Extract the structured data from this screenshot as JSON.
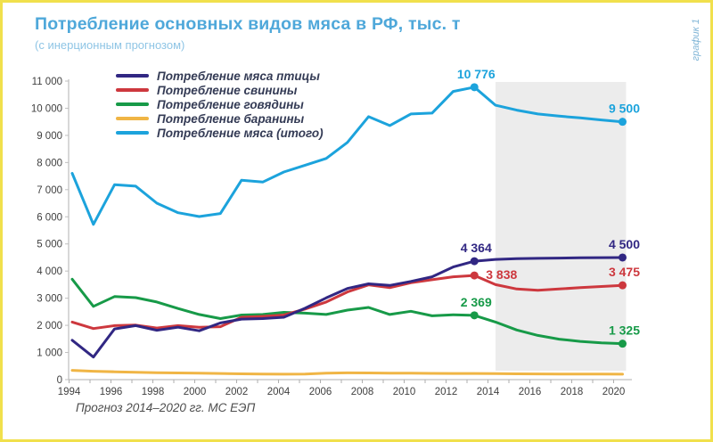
{
  "page": {
    "title": "Потребление основных видов мяса в РФ, тыс. т",
    "subtitle": "(с инерционным прогнозом)",
    "side_label": "график 1",
    "caption": "Прогноз 2014–2020 гг. МС ЕЭП",
    "border_color": "#F1E04C",
    "title_color": "#4FA8DA"
  },
  "chart_data": {
    "type": "line",
    "title": "Потребление основных видов мяса в РФ, тыс. т",
    "subtitle": "(с инерционным прогнозом)",
    "xlabel": "",
    "ylabel": "",
    "grid": false,
    "legend_position": "top-left-inside",
    "x": [
      1994,
      1995,
      1996,
      1997,
      1998,
      1999,
      2000,
      2001,
      2002,
      2003,
      2004,
      2005,
      2006,
      2007,
      2008,
      2009,
      2010,
      2011,
      2012,
      2013,
      2014,
      2015,
      2016,
      2017,
      2018,
      2019,
      2020
    ],
    "x_tick_labels": [
      "1994",
      "1996",
      "1998",
      "2000",
      "2002",
      "2004",
      "2006",
      "2008",
      "2010",
      "2012",
      "2014",
      "2016",
      "2018",
      "2020"
    ],
    "y_ticks": [
      0,
      1000,
      2000,
      3000,
      4000,
      5000,
      6000,
      7000,
      8000,
      9000,
      10000,
      11000
    ],
    "y_tick_labels": [
      "0",
      "1 000",
      "2 000",
      "3 000",
      "4 000",
      "5 000",
      "6 000",
      "7 000",
      "8 000",
      "9 000",
      "10 000",
      "11 000"
    ],
    "ylim": [
      0,
      11000
    ],
    "forecast_band": {
      "from_year": 2014,
      "to_year": 2020,
      "color": "#ECECEC"
    },
    "series": [
      {
        "name": "Потребление мяса птицы",
        "color": "#312783",
        "values": [
          1450,
          830,
          1870,
          1990,
          1820,
          1930,
          1800,
          2090,
          2230,
          2250,
          2300,
          2630,
          3010,
          3360,
          3530,
          3470,
          3620,
          3790,
          4150,
          4364,
          4430,
          4460,
          4470,
          4480,
          4490,
          4495,
          4500
        ]
      },
      {
        "name": "Потребление свинины",
        "color": "#CD383E",
        "values": [
          2120,
          1880,
          1990,
          2010,
          1900,
          1990,
          1930,
          1950,
          2300,
          2330,
          2380,
          2600,
          2860,
          3230,
          3490,
          3390,
          3570,
          3680,
          3790,
          3838,
          3500,
          3340,
          3290,
          3340,
          3390,
          3430,
          3475
        ]
      },
      {
        "name": "Потребление говядины",
        "color": "#179A48",
        "values": [
          3700,
          2700,
          3060,
          3020,
          2860,
          2620,
          2400,
          2250,
          2380,
          2400,
          2480,
          2450,
          2400,
          2560,
          2660,
          2400,
          2520,
          2350,
          2390,
          2369,
          2120,
          1830,
          1630,
          1490,
          1410,
          1355,
          1325
        ]
      },
      {
        "name": "Потребление баранины",
        "color": "#F0B545",
        "values": [
          340,
          310,
          290,
          270,
          255,
          245,
          235,
          225,
          215,
          205,
          200,
          205,
          235,
          250,
          245,
          235,
          235,
          230,
          225,
          225,
          220,
          215,
          210,
          208,
          205,
          203,
          200
        ]
      },
      {
        "name": "Потребление мяса (итого)",
        "color": "#1CA3DC",
        "values": [
          7600,
          5720,
          7180,
          7130,
          6500,
          6150,
          6010,
          6120,
          7350,
          7280,
          7650,
          7900,
          8150,
          8740,
          9690,
          9360,
          9790,
          9820,
          10620,
          10776,
          10110,
          9930,
          9790,
          9710,
          9645,
          9570,
          9500
        ]
      }
    ],
    "annotations": [
      {
        "series": 4,
        "year": 2013,
        "value": 10776,
        "label": "10 776",
        "placement": "above"
      },
      {
        "series": 4,
        "year": 2020,
        "value": 9500,
        "label": "9 500",
        "placement": "above"
      },
      {
        "series": 0,
        "year": 2013,
        "value": 4364,
        "label": "4 364",
        "placement": "above"
      },
      {
        "series": 0,
        "year": 2020,
        "value": 4500,
        "label": "4 500",
        "placement": "above"
      },
      {
        "series": 1,
        "year": 2013,
        "value": 3838,
        "label": "3 838",
        "placement": "right"
      },
      {
        "series": 1,
        "year": 2020,
        "value": 3475,
        "label": "3 475",
        "placement": "above"
      },
      {
        "series": 2,
        "year": 2013,
        "value": 2369,
        "label": "2 369",
        "placement": "above"
      },
      {
        "series": 2,
        "year": 2020,
        "value": 1325,
        "label": "1 325",
        "placement": "above"
      }
    ]
  }
}
